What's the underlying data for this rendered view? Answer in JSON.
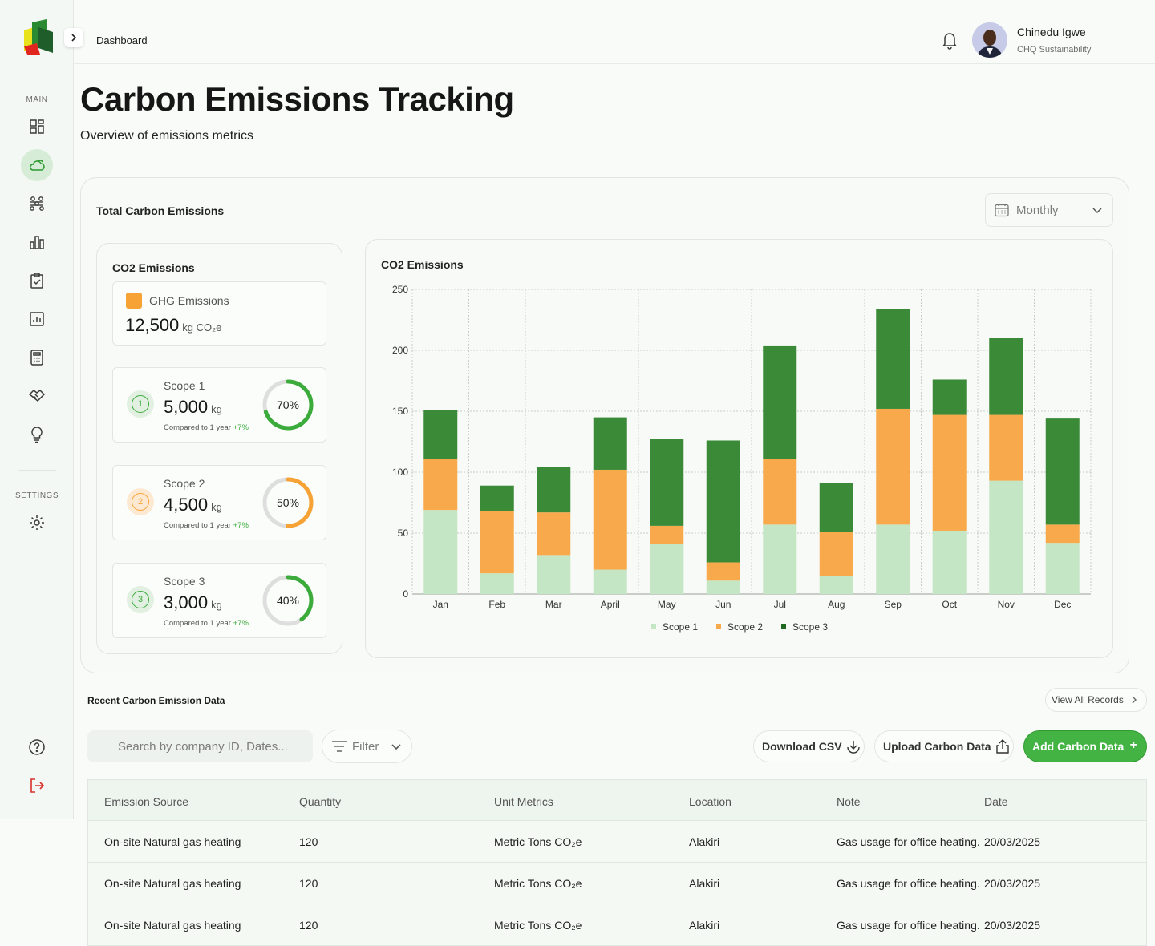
{
  "sidebar": {
    "section_main": "MAIN",
    "section_settings": "SETTINGS",
    "nav_items": [
      "dashboard-icon",
      "cloud-icon",
      "network-icon",
      "bar-chart-icon",
      "clipboard-check-icon",
      "report-icon",
      "calculator-icon",
      "handshake-icon",
      "lightbulb-icon"
    ],
    "settings_item": "gear-icon",
    "bottom_items": [
      "help-icon",
      "logout-icon"
    ]
  },
  "topbar": {
    "breadcrumb": "Dashboard",
    "user_name": "Chinedu Igwe",
    "user_role": "CHQ Sustainability"
  },
  "header": {
    "title": "Carbon Emissions Tracking",
    "subtitle": "Overview of emissions metrics"
  },
  "panel": {
    "title": "Total Carbon Emissions",
    "period": "Monthly",
    "co2_card_title": "CO2 Emissions",
    "ghg": {
      "label": "GHG Emissions",
      "value": "12,500",
      "unit": "kg CO₂e"
    },
    "scopes": [
      {
        "number": "1",
        "name": "Scope 1",
        "value": "5,000",
        "unit": "kg",
        "compare": "Compared to 1 year",
        "delta": "+7%",
        "percent_label": "70%",
        "percent": 70,
        "color": "#3bab3b",
        "bg": "#e1f0e1"
      },
      {
        "number": "2",
        "name": "Scope 2",
        "value": "4,500",
        "unit": "kg",
        "compare": "Compared to 1 year",
        "delta": "+7%",
        "percent_label": "50%",
        "percent": 50,
        "color": "#f7a234",
        "bg": "#fde9d2"
      },
      {
        "number": "3",
        "name": "Scope 3",
        "value": "3,000",
        "unit": "kg",
        "compare": "Compared to 1 year",
        "delta": "+7%",
        "percent_label": "40%",
        "percent": 40,
        "color": "#3bab3b",
        "bg": "#e1f0e1"
      }
    ]
  },
  "chart_data": {
    "type": "bar",
    "stacked": true,
    "title": "CO2 Emissions",
    "categories": [
      "Jan",
      "Feb",
      "Mar",
      "April",
      "May",
      "Jun",
      "Jul",
      "Aug",
      "Sep",
      "Oct",
      "Nov",
      "Dec"
    ],
    "series": [
      {
        "name": "Scope 1",
        "color": "#c5e6c5",
        "values": [
          69,
          17,
          32,
          20,
          41,
          11,
          57,
          15,
          57,
          52,
          93,
          42
        ]
      },
      {
        "name": "Scope 2",
        "color": "#f7a94b",
        "values": [
          42,
          51,
          35,
          82,
          15,
          15,
          54,
          36,
          95,
          95,
          54,
          15
        ]
      },
      {
        "name": "Scope 3",
        "color": "#3a8a38",
        "values": [
          40,
          21,
          37,
          43,
          71,
          100,
          93,
          40,
          82,
          29,
          63,
          87
        ]
      }
    ],
    "yticks": [
      0,
      50,
      100,
      150,
      200,
      250
    ],
    "ylim": [
      0,
      250
    ],
    "grid": true,
    "legend": "bottom"
  },
  "recent": {
    "title": "Recent Carbon Emission Data",
    "view_all": "View All Records",
    "search_placeholder": "Search by company ID, Dates...",
    "filter": "Filter",
    "download": "Download CSV",
    "upload": "Upload Carbon Data",
    "add": "Add Carbon Data",
    "add_icon": "+",
    "columns": [
      "Emission Source",
      "Quantity",
      "Unit Metrics",
      "Location",
      "Note",
      "Date"
    ],
    "rows": [
      [
        "On-site Natural gas heating",
        "120",
        "Metric Tons CO₂e",
        "Alakiri",
        "Gas usage for office heating.",
        "20/03/2025"
      ],
      [
        "On-site Natural gas heating",
        "120",
        "Metric Tons CO₂e",
        "Alakiri",
        "Gas usage for office heating.",
        "20/03/2025"
      ],
      [
        "On-site Natural gas heating",
        "120",
        "Metric Tons CO₂e",
        "Alakiri",
        "Gas usage for office heating.",
        "20/03/2025"
      ]
    ]
  }
}
